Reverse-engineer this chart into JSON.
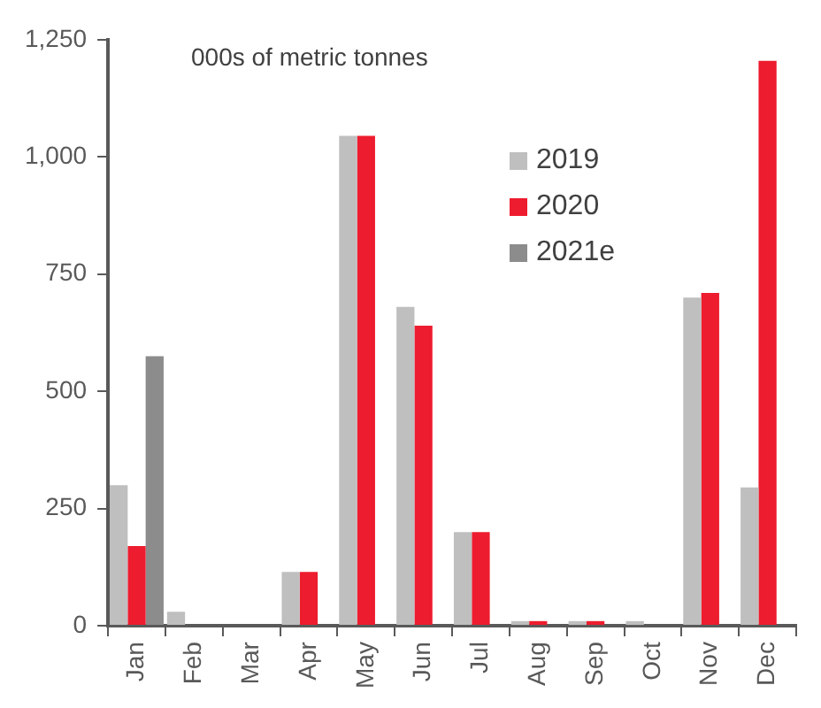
{
  "chart_data": {
    "type": "bar",
    "subtitle": "000s of metric tonnes",
    "categories": [
      "Jan",
      "Feb",
      "Mar",
      "Apr",
      "May",
      "Jun",
      "Jul",
      "Aug",
      "Sep",
      "Oct",
      "Nov",
      "Dec"
    ],
    "series": [
      {
        "name": "2019",
        "color": "#bfbfbf",
        "values": [
          300,
          30,
          null,
          115,
          1045,
          680,
          200,
          10,
          10,
          10,
          700,
          295
        ]
      },
      {
        "name": "2020",
        "color": "#ed1c2e",
        "values": [
          170,
          null,
          null,
          115,
          1045,
          640,
          200,
          10,
          10,
          null,
          710,
          1205
        ]
      },
      {
        "name": "2021e",
        "color": "#8c8c8c",
        "values": [
          575,
          null,
          null,
          null,
          null,
          null,
          null,
          null,
          null,
          null,
          null,
          null
        ]
      }
    ],
    "ylim": [
      0,
      1250
    ],
    "yticks": [
      0,
      250,
      500,
      750,
      {
        "value": 1000,
        "label": "1,000"
      },
      {
        "value": 1250,
        "label": "1,250"
      }
    ],
    "grid": false,
    "legend": "top right"
  }
}
